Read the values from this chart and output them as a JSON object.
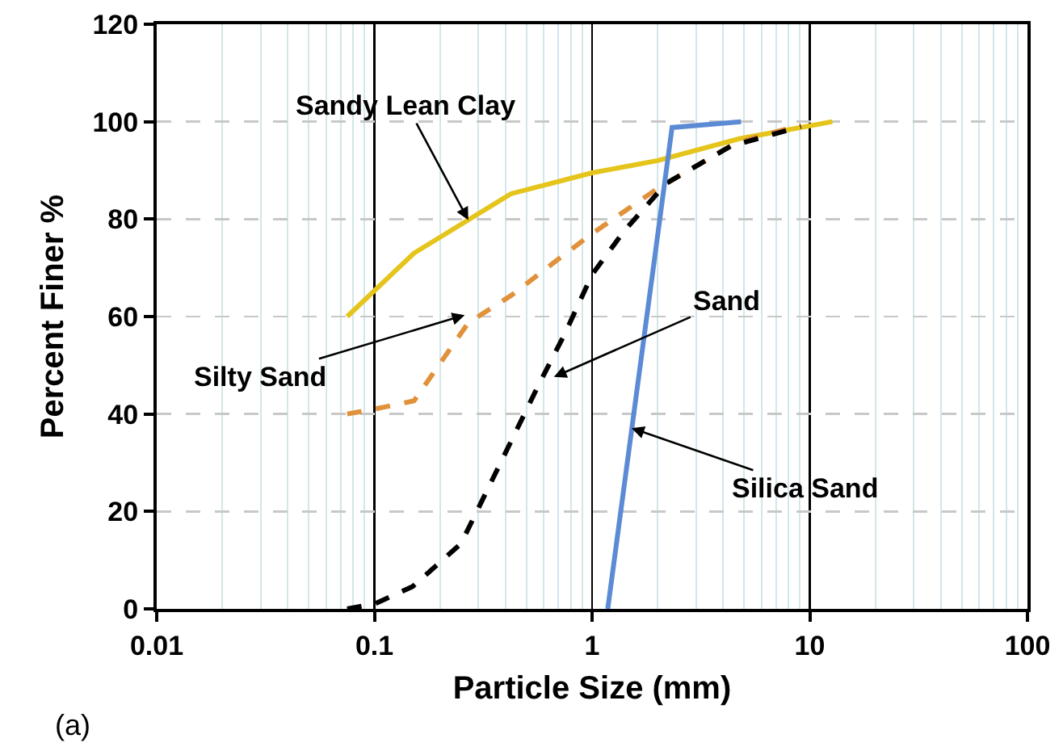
{
  "chart_data": {
    "type": "line",
    "xlabel": "Particle Size (mm)",
    "ylabel": "Percent Finer %",
    "log": "x",
    "grid": true,
    "marker": "none",
    "xlim": [
      0.01,
      100
    ],
    "xticks": [
      0.01,
      0.1,
      1,
      10,
      100
    ],
    "ylim": [
      0,
      120
    ],
    "yticks": [
      0,
      20,
      40,
      60,
      80,
      100,
      120
    ],
    "series": [
      {
        "color": "#e5c41c",
        "line_style": "solid",
        "x": [
          0.075,
          0.152,
          0.424,
          1,
          2,
          4.75,
          12.7
        ],
        "values": [
          60,
          73,
          85.2,
          89.5,
          92,
          96.5,
          100
        ]
      },
      {
        "color": "#e0913a",
        "line_style": "dashed",
        "x": [
          0.075,
          0.1,
          0.152,
          0.27,
          0.424,
          0.71,
          1,
          2,
          4.6,
          9.1
        ],
        "values": [
          40,
          41,
          42.7,
          58.7,
          64.3,
          72,
          77,
          86.3,
          95.7,
          99.3
        ]
      },
      {
        "color": "#000000",
        "line_style": "dashed",
        "x": [
          0.075,
          0.1,
          0.15,
          0.25,
          0.38,
          0.56,
          0.75,
          1,
          1.4,
          2.2,
          4.35,
          9.1
        ],
        "values": [
          0,
          1,
          4.6,
          13.4,
          30,
          45.4,
          56.5,
          68.6,
          77.5,
          87.4,
          95,
          99
        ]
      },
      {
        "color": "#5b8bd4",
        "line_style": "solid",
        "x": [
          1.18,
          2.33,
          4.83
        ],
        "values": [
          0,
          98.8,
          100
        ]
      }
    ],
    "annotations": [
      {
        "text": "Sandy Lean Clay",
        "x": 0.27,
        "y": 79.8
      },
      {
        "text": "Silty Sand",
        "x": 0.26,
        "y": 60.3
      },
      {
        "text": "Sand",
        "x": 0.668,
        "y": 47.6
      },
      {
        "text": "Silica Sand",
        "x": 1.52,
        "y": 37.1
      },
      "(a)"
    ]
  }
}
